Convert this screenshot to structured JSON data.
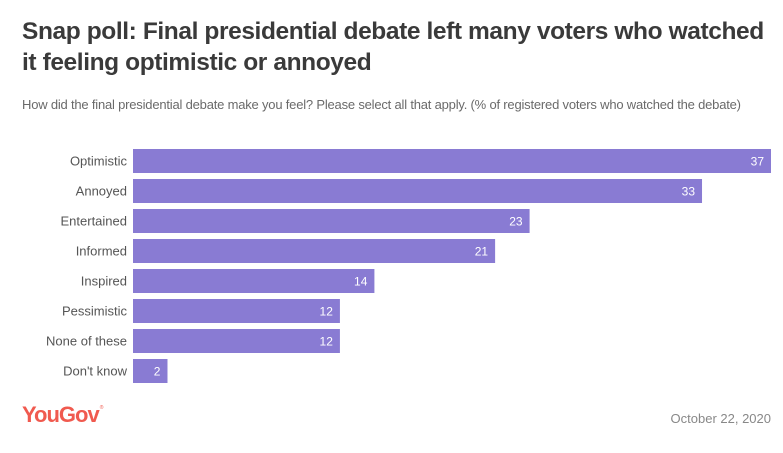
{
  "header": {
    "title": "Snap poll: Final presidential debate left many voters who watched it feeling optimistic or annoyed",
    "subtitle": "How did the final presidential debate make you feel? Please select all that apply. (% of registered voters who watched the debate)"
  },
  "footer": {
    "brand": "YouGov",
    "brand_mark": "®",
    "date": "October 22, 2020"
  },
  "colors": {
    "bar": "#897bd3",
    "brand": "#f05a4f"
  },
  "chart_data": {
    "type": "bar",
    "orientation": "horizontal",
    "title": "Snap poll: Final presidential debate left many voters who watched it feeling optimistic or annoyed",
    "subtitle": "How did the final presidential debate make you feel? Please select all that apply. (% of registered voters who watched the debate)",
    "xlabel": "",
    "ylabel": "",
    "categories": [
      "Optimistic",
      "Annoyed",
      "Entertained",
      "Informed",
      "Inspired",
      "Pessimistic",
      "None of these",
      "Don't know"
    ],
    "values": [
      37,
      33,
      23,
      21,
      14,
      12,
      12,
      2
    ],
    "xlim": [
      0,
      37
    ],
    "grid": false,
    "legend": "none",
    "data_labels": true
  }
}
